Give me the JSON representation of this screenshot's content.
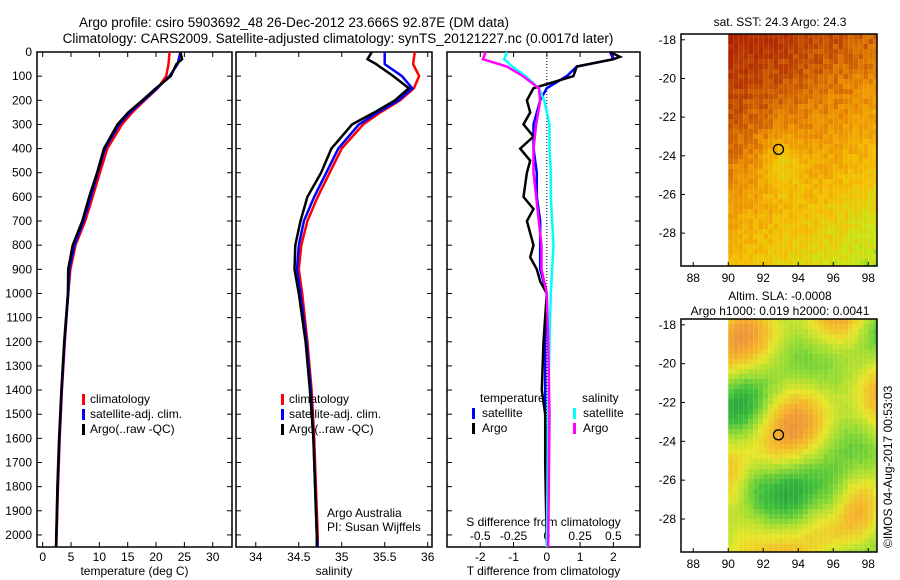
{
  "title_line1": "Argo profile: csiro 5903692_48 26-Dec-2012 23.666S 92.87E (DM data)",
  "title_line2": "Climatology: CARS2009. Satellite-adjusted climatology: synTS_20121227.nc (0.0017d later)",
  "credit": "©IMOS 04-Aug-2017 00:53:03",
  "colors": {
    "climatology": "#ff0000",
    "satellite": "#0000ff",
    "argo": "#000000",
    "s_satellite": "#00ffff",
    "s_argo": "#ff00ff"
  },
  "chart_data": [
    {
      "type": "line",
      "id": "temperature",
      "xlabel": "temperature (deg C)",
      "xlim": [
        -1,
        33.4
      ],
      "ylim": [
        2050,
        0
      ],
      "xticks": [
        0,
        5,
        10,
        15,
        20,
        25,
        30
      ],
      "yticks": [
        0,
        100,
        200,
        300,
        400,
        500,
        600,
        700,
        800,
        900,
        1000,
        1100,
        1200,
        1300,
        1400,
        1500,
        1600,
        1700,
        1800,
        1900,
        2000
      ],
      "legend": [
        "climatology",
        "satellite-adj. clim.",
        "Argo(..raw -QC)"
      ],
      "series": [
        {
          "name": "climatology",
          "color": "#ff0000",
          "depth": [
            0,
            50,
            100,
            150,
            200,
            250,
            300,
            400,
            500,
            600,
            700,
            800,
            900,
            1000,
            1200,
            1400,
            1600,
            1800,
            2000,
            2050
          ],
          "values": [
            22.4,
            22.2,
            21.8,
            20.3,
            18.0,
            15.8,
            14.0,
            11.4,
            10.1,
            8.8,
            7.5,
            5.8,
            4.9,
            4.5,
            3.9,
            3.4,
            3.0,
            2.7,
            2.45,
            2.4
          ]
        },
        {
          "name": "satellite-adj. clim.",
          "color": "#0000ff",
          "depth": [
            0,
            50,
            100,
            150,
            200,
            250,
            300,
            400,
            500,
            600,
            700,
            800,
            900,
            1000,
            1200,
            1400,
            1600,
            1800,
            2000,
            2050
          ],
          "values": [
            24.3,
            23.8,
            22.4,
            20.2,
            17.8,
            15.4,
            13.5,
            11.0,
            9.7,
            8.5,
            7.2,
            5.6,
            4.7,
            4.5,
            3.85,
            3.35,
            2.95,
            2.65,
            2.42,
            2.38
          ]
        },
        {
          "name": "Argo(..raw -QC)",
          "color": "#000000",
          "depth": [
            0,
            30,
            50,
            100,
            150,
            200,
            250,
            300,
            400,
            500,
            600,
            700,
            800,
            900,
            1000,
            1200,
            1400,
            1600,
            1800,
            2000,
            2050
          ],
          "values": [
            24.3,
            24.6,
            23.6,
            22.6,
            20.0,
            17.6,
            15.1,
            13.2,
            10.8,
            9.6,
            8.2,
            7.0,
            5.3,
            4.5,
            4.45,
            3.8,
            3.3,
            2.9,
            2.6,
            2.4,
            2.35
          ]
        }
      ]
    },
    {
      "type": "line",
      "id": "salinity",
      "xlabel": "salinity",
      "xlim": [
        33.77,
        36.05
      ],
      "ylim": [
        2050,
        0
      ],
      "xticks": [
        34,
        34.5,
        35,
        35.5,
        36
      ],
      "legend": [
        "climatology",
        "satellite-adj. clim.",
        "Argo(..raw -QC)"
      ],
      "annotation": [
        "Argo Australia",
        "PI: Susan Wijffels"
      ],
      "series": [
        {
          "name": "climatology",
          "color": "#ff0000",
          "depth": [
            0,
            50,
            100,
            150,
            200,
            250,
            300,
            400,
            500,
            600,
            700,
            800,
            900,
            1000,
            1200,
            1400,
            1600,
            1800,
            2000,
            2050
          ],
          "values": [
            35.85,
            35.83,
            35.9,
            35.84,
            35.68,
            35.45,
            35.25,
            35.0,
            34.86,
            34.72,
            34.6,
            34.53,
            34.5,
            34.54,
            34.6,
            34.65,
            34.68,
            34.7,
            34.72,
            34.72
          ]
        },
        {
          "name": "satellite-adj. clim.",
          "color": "#0000ff",
          "depth": [
            0,
            50,
            100,
            150,
            200,
            250,
            300,
            400,
            500,
            600,
            700,
            800,
            900,
            1000,
            1200,
            1400,
            1600,
            1800,
            2000,
            2050
          ],
          "values": [
            35.5,
            35.5,
            35.7,
            35.82,
            35.66,
            35.42,
            35.2,
            34.96,
            34.82,
            34.68,
            34.56,
            34.5,
            34.48,
            34.52,
            34.59,
            34.64,
            34.67,
            34.69,
            34.71,
            34.72
          ]
        },
        {
          "name": "Argo(..raw -QC)",
          "color": "#000000",
          "depth": [
            0,
            30,
            50,
            100,
            150,
            200,
            250,
            300,
            400,
            500,
            600,
            700,
            800,
            900,
            1000,
            1200,
            1400,
            1600,
            1800,
            2000,
            2050
          ],
          "values": [
            35.35,
            35.3,
            35.4,
            35.6,
            35.78,
            35.62,
            35.38,
            35.12,
            34.88,
            34.76,
            34.6,
            34.52,
            34.46,
            34.45,
            34.5,
            34.58,
            34.63,
            34.67,
            34.69,
            34.71,
            34.71
          ]
        }
      ]
    },
    {
      "type": "line",
      "id": "differences",
      "xlabel": "T difference from climatology",
      "x2label": "S difference from climatology",
      "xlim": [
        -3.0,
        2.8
      ],
      "x2lim": [
        -0.75,
        0.7
      ],
      "ylim": [
        2050,
        0
      ],
      "xticks": [
        -2,
        -1,
        0,
        1,
        2
      ],
      "x2ticks": [
        -0.5,
        -0.25,
        0,
        0.25,
        0.5
      ],
      "legend_t_title": "temperature",
      "legend_s_title": "salinity",
      "legend_t": [
        "satellite",
        "Argo"
      ],
      "legend_s": [
        "satellite",
        "Argo"
      ],
      "series": [
        {
          "name": "T satellite",
          "color": "#0000ff",
          "axis": "T",
          "depth": [
            0,
            30,
            60,
            100,
            150,
            200,
            300,
            400,
            500,
            600,
            700,
            800,
            900,
            1000,
            1200,
            1500,
            2050
          ],
          "values": [
            1.9,
            2.0,
            0.9,
            0.6,
            0.0,
            -0.2,
            -0.4,
            -0.4,
            -0.3,
            -0.3,
            -0.2,
            -0.2,
            -0.2,
            0.0,
            -0.05,
            -0.05,
            0.0
          ]
        },
        {
          "name": "T Argo",
          "color": "#000000",
          "axis": "T",
          "depth": [
            0,
            20,
            30,
            60,
            100,
            150,
            200,
            250,
            300,
            350,
            400,
            450,
            500,
            600,
            650,
            700,
            800,
            850,
            900,
            950,
            1000,
            1200,
            1400,
            1500,
            1700,
            2050
          ],
          "values": [
            1.9,
            2.2,
            2.0,
            0.9,
            0.8,
            -0.4,
            -0.6,
            -0.5,
            -0.7,
            -0.4,
            -0.8,
            -0.5,
            -0.6,
            -0.7,
            -0.4,
            -0.6,
            -0.4,
            -0.5,
            -0.3,
            -0.2,
            0.0,
            -0.1,
            -0.15,
            -0.05,
            -0.05,
            0.0
          ]
        },
        {
          "name": "S satellite",
          "color": "#00ffff",
          "axis": "S",
          "depth": [
            0,
            30,
            60,
            100,
            150,
            200,
            300,
            400,
            500,
            600,
            800,
            1000,
            1200,
            1500,
            2050
          ],
          "values": [
            -0.3,
            -0.32,
            -0.26,
            -0.16,
            -0.06,
            -0.02,
            0.02,
            0.02,
            0.03,
            0.03,
            0.05,
            0.03,
            0.02,
            0.01,
            0.0
          ]
        },
        {
          "name": "S Argo",
          "color": "#ff00ff",
          "axis": "S",
          "depth": [
            0,
            30,
            60,
            100,
            150,
            200,
            300,
            400,
            500,
            600,
            700,
            800,
            900,
            1000,
            1200,
            1500,
            2050
          ],
          "values": [
            -0.46,
            -0.48,
            -0.3,
            -0.18,
            -0.06,
            -0.05,
            -0.08,
            -0.1,
            -0.1,
            -0.08,
            -0.06,
            -0.04,
            -0.04,
            0.0,
            0.01,
            0.02,
            0.01
          ]
        }
      ]
    },
    {
      "type": "heatmap",
      "id": "sst-map",
      "title": "sat. SST: 24.3 Argo: 24.3",
      "xlim": [
        87.3,
        98.5
      ],
      "ylim": [
        -29.7,
        -17.7
      ],
      "xticks": [
        88,
        90,
        92,
        94,
        96,
        98
      ],
      "yticks": [
        -18,
        -20,
        -22,
        -24,
        -26,
        -28
      ],
      "float_position": [
        92.87,
        -23.666
      ]
    },
    {
      "type": "heatmap",
      "id": "sla-map",
      "title_line1": "Altim. SLA: -0.0008",
      "title_line2": "Argo h1000: 0.019 h2000: 0.0041",
      "xlim": [
        87.3,
        98.5
      ],
      "ylim": [
        -29.7,
        -17.7
      ],
      "xticks": [
        88,
        90,
        92,
        94,
        96,
        98
      ],
      "yticks": [
        -18,
        -20,
        -22,
        -24,
        -26,
        -28
      ],
      "float_position": [
        92.87,
        -23.666
      ]
    }
  ]
}
